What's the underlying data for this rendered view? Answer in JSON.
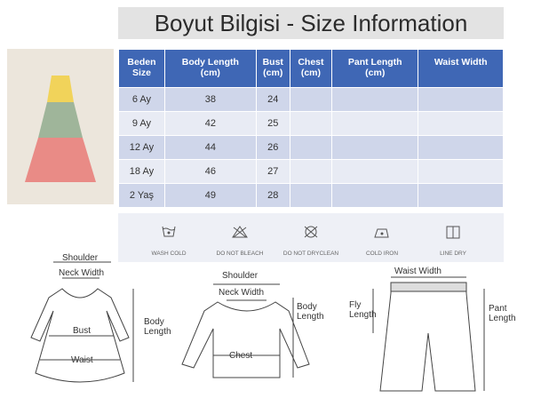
{
  "title": "Boyut Bilgisi - Size Information",
  "table": {
    "headers": [
      [
        "Beden",
        "Size"
      ],
      [
        "Body Length",
        "(cm)"
      ],
      [
        "Bust",
        "(cm)"
      ],
      [
        "Chest",
        "(cm)"
      ],
      [
        "Pant Length",
        "(cm)"
      ],
      [
        "Waist Width",
        ""
      ]
    ],
    "rows": [
      [
        "6 Ay",
        "38",
        "24",
        "",
        "",
        ""
      ],
      [
        "9 Ay",
        "42",
        "25",
        "",
        "",
        ""
      ],
      [
        "12 Ay",
        "44",
        "26",
        "",
        "",
        ""
      ],
      [
        "18 Ay",
        "46",
        "27",
        "",
        "",
        ""
      ],
      [
        "2 Yaş",
        "49",
        "28",
        "",
        "",
        ""
      ]
    ]
  },
  "care": [
    {
      "icon": "wash-cold-icon",
      "label": "WASH COLD"
    },
    {
      "icon": "do-not-bleach-icon",
      "label": "DO NOT BLEACH"
    },
    {
      "icon": "do-not-dryclean-icon",
      "label": "DO NOT DRYCLEAN"
    },
    {
      "icon": "cold-iron-icon",
      "label": "COLD IRON"
    },
    {
      "icon": "line-dry-icon",
      "label": "LINE DRY"
    }
  ],
  "diagrams": {
    "dress": {
      "shoulder": "Shoulder",
      "neck": "Neck Width",
      "bust": "Bust",
      "waist": "Waist",
      "body": "Body Length"
    },
    "shirt": {
      "shoulder": "Shoulder",
      "neck": "Neck Width",
      "chest": "Chest",
      "body": "Body Length"
    },
    "pants": {
      "waist": "Waist Width",
      "fly": "Fly Length",
      "pant": "Pant Length"
    }
  }
}
